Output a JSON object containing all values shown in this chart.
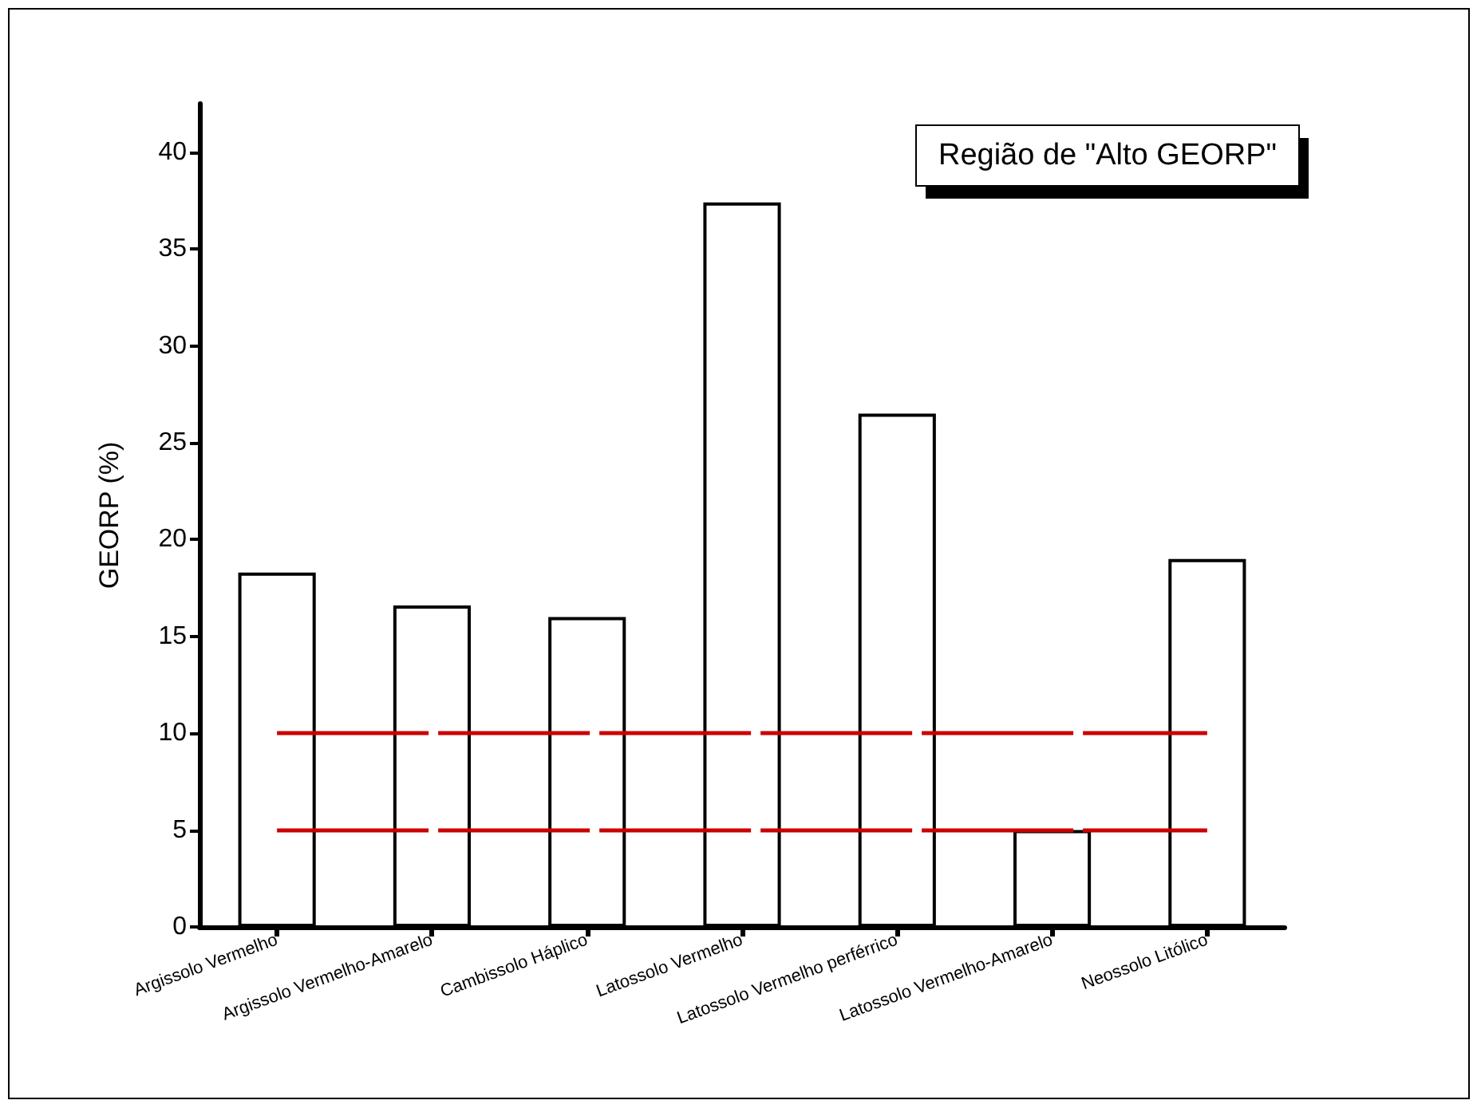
{
  "chart_data": {
    "type": "bar",
    "ylabel": "GEORP (%)",
    "categories": [
      "Argissolo Vermelho",
      "Argissolo Vermelho-Amarelo",
      "Cambissolo Háplico",
      "Latossolo Vermelho",
      "Latossolo Vermelho perférrico",
      "Latossolo Vermelho-Amarelo",
      "Neossolo Litólico"
    ],
    "values": [
      18.3,
      16.6,
      16.0,
      37.4,
      26.5,
      5.0,
      19.0
    ],
    "color": "#ffffff",
    "ylim": [
      0,
      42.5
    ],
    "yticks": [
      0,
      5,
      10,
      15,
      20,
      25,
      30,
      35,
      40
    ],
    "grid": false,
    "ref_lines": [
      {
        "axis": "y",
        "value": 10,
        "color": "#cc0000",
        "line_style": "dashed"
      },
      {
        "axis": "y",
        "value": 5,
        "color": "#cc0000",
        "line_style": "dashed"
      }
    ],
    "annotations": [
      "Região de \"Alto GEORP\""
    ]
  }
}
